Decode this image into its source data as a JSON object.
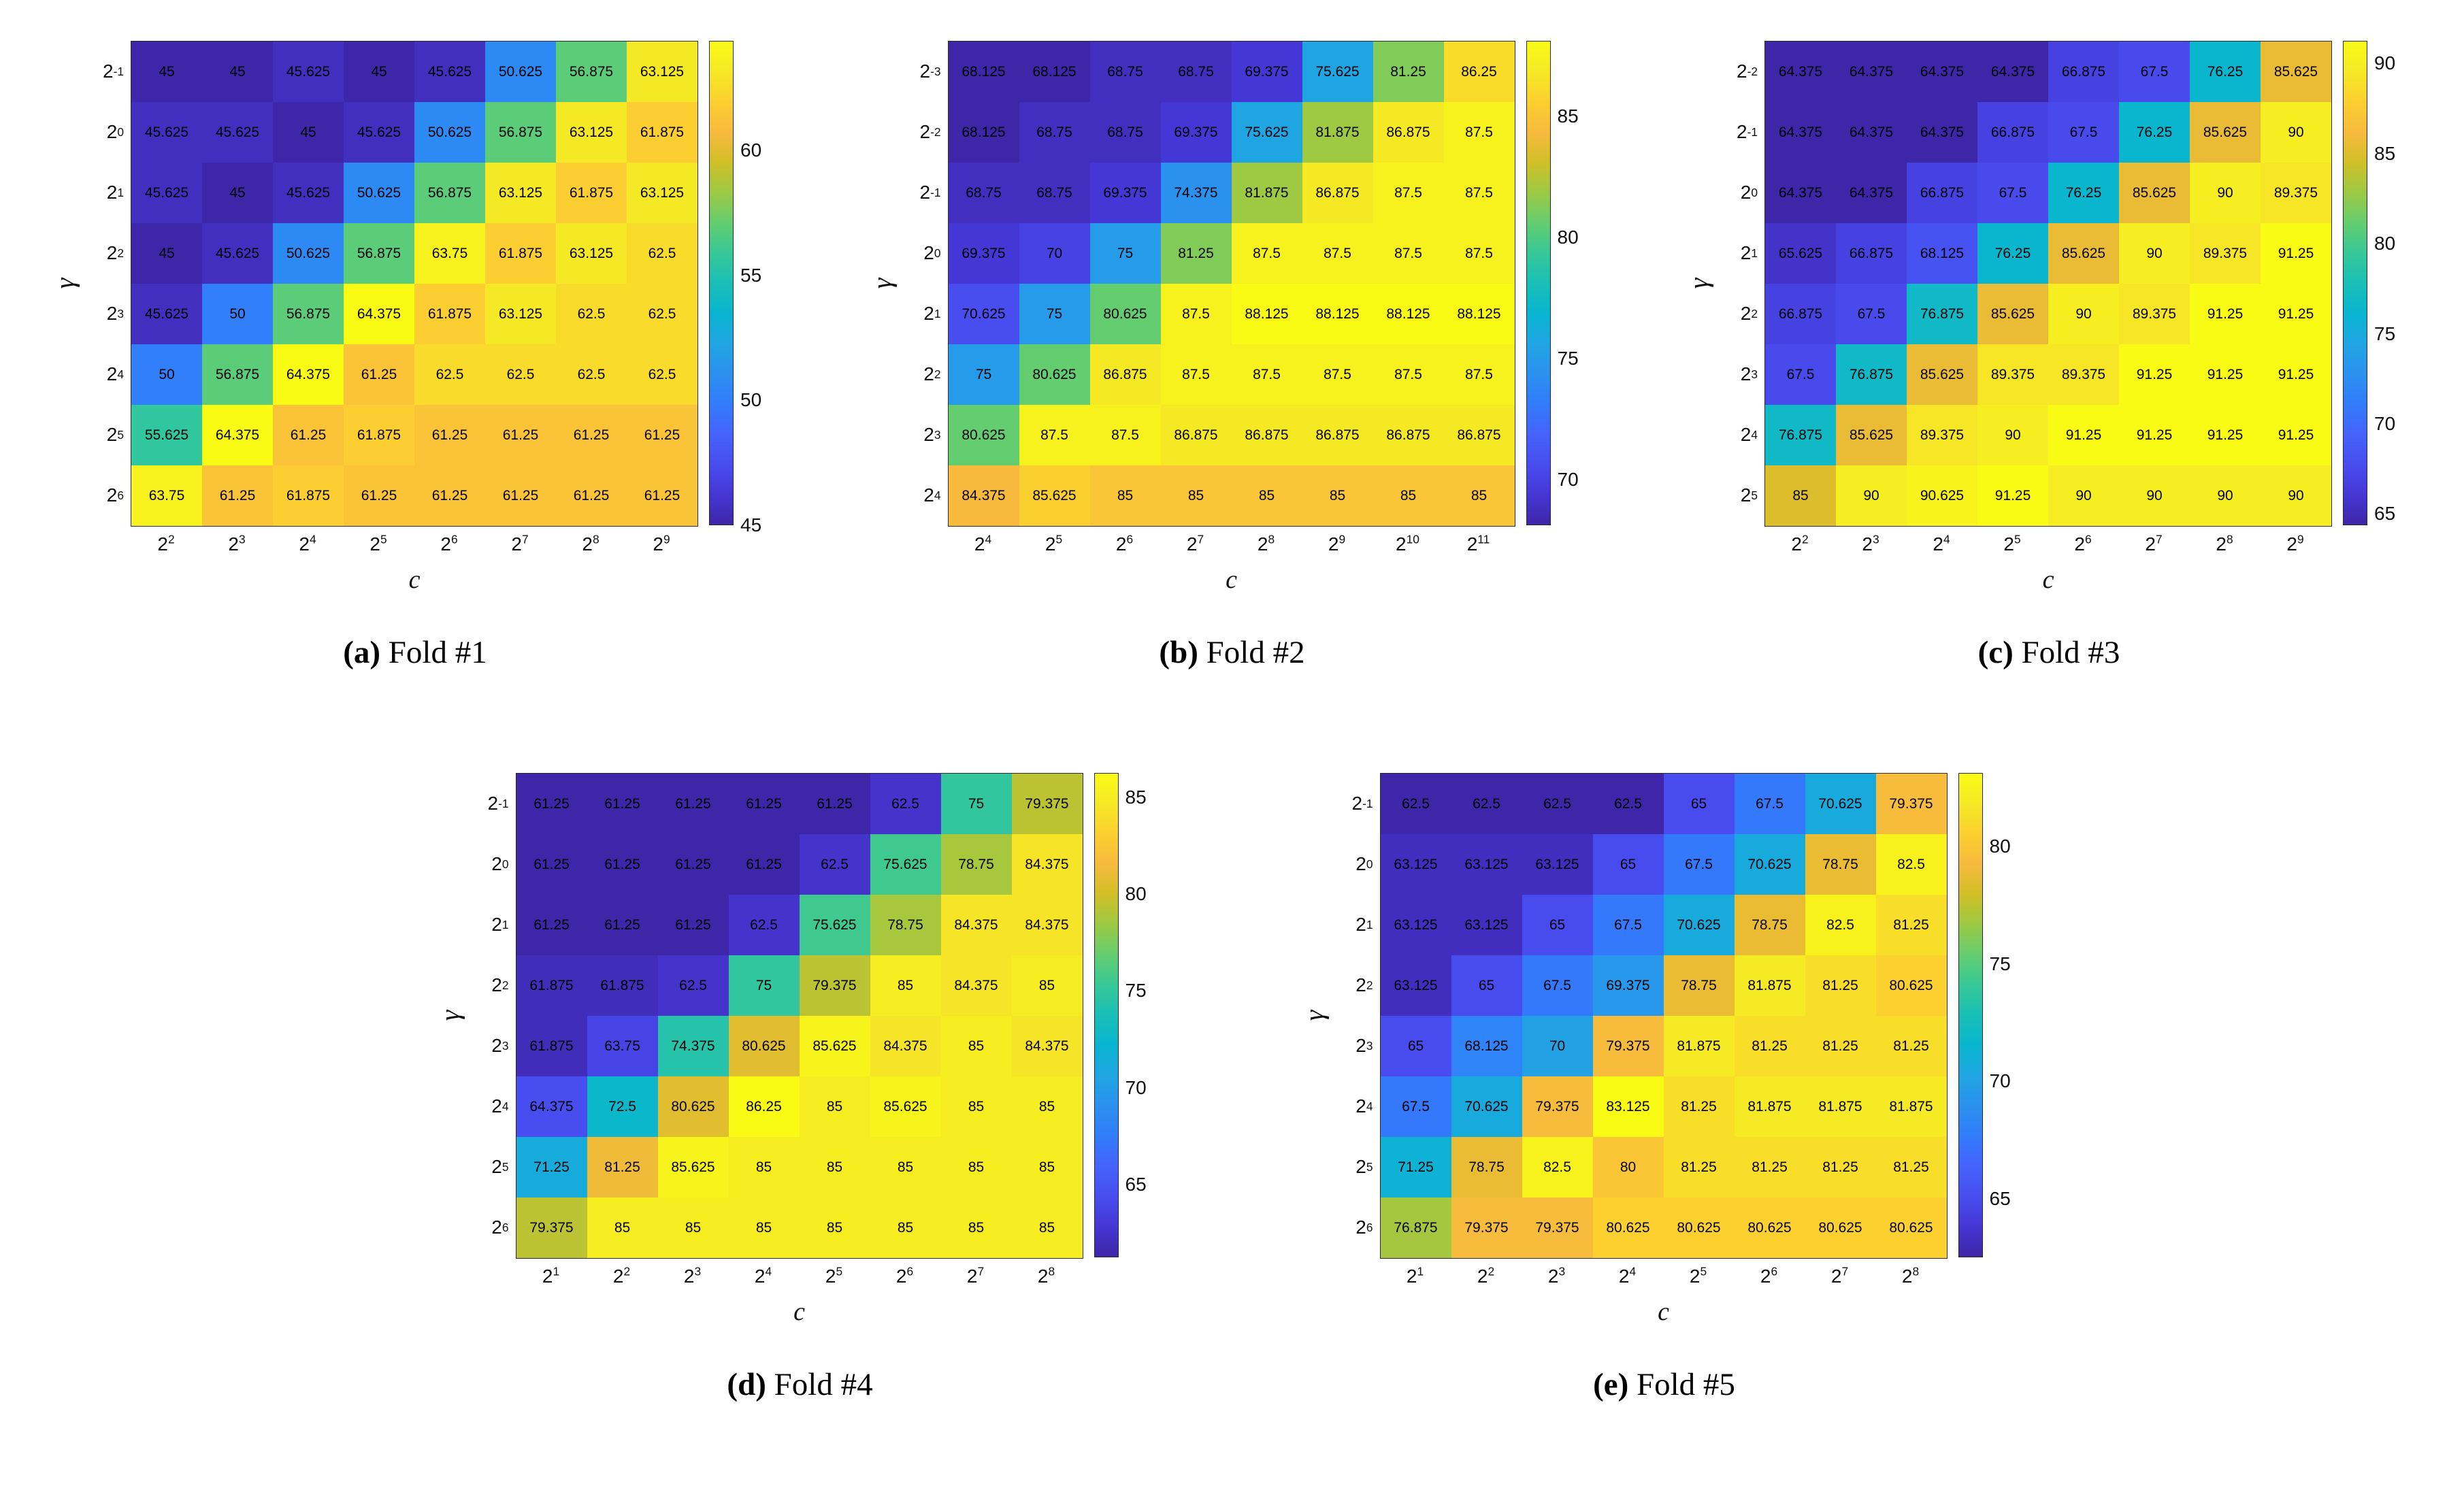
{
  "figure": {
    "background": "#ffffff",
    "text_color": "#000000"
  },
  "chart_data": [
    {
      "type": "heatmap",
      "colormap": "parula",
      "caption_prefix": "(a)",
      "caption_label": "Fold #1",
      "xlabel": "c",
      "ylabel": "γ",
      "tick_base": "2",
      "x_exponents": [
        "2",
        "3",
        "4",
        "5",
        "6",
        "7",
        "8",
        "9"
      ],
      "y_exponents": [
        "-1",
        "0",
        "1",
        "2",
        "3",
        "4",
        "5",
        "6"
      ],
      "clim": [
        45,
        64.375
      ],
      "colorbar_ticks": [
        45,
        50,
        55,
        60
      ],
      "rows": [
        [
          45,
          45,
          45.625,
          45,
          45.625,
          50.625,
          56.875,
          63.125
        ],
        [
          45.625,
          45.625,
          45,
          45.625,
          50.625,
          56.875,
          63.125,
          61.875
        ],
        [
          45.625,
          45,
          45.625,
          50.625,
          56.875,
          63.125,
          61.875,
          63.125
        ],
        [
          45,
          45.625,
          50.625,
          56.875,
          63.75,
          61.875,
          63.125,
          62.5
        ],
        [
          45.625,
          50,
          56.875,
          64.375,
          61.875,
          63.125,
          62.5,
          62.5
        ],
        [
          50,
          56.875,
          64.375,
          61.25,
          62.5,
          62.5,
          62.5,
          62.5
        ],
        [
          55.625,
          64.375,
          61.25,
          61.875,
          61.25,
          61.25,
          61.25,
          61.25
        ],
        [
          63.75,
          61.25,
          61.875,
          61.25,
          61.25,
          61.25,
          61.25,
          61.25
        ]
      ]
    },
    {
      "type": "heatmap",
      "colormap": "parula",
      "caption_prefix": "(b)",
      "caption_label": "Fold #2",
      "xlabel": "c",
      "ylabel": "γ",
      "tick_base": "2",
      "x_exponents": [
        "4",
        "5",
        "6",
        "7",
        "8",
        "9",
        "10",
        "11"
      ],
      "y_exponents": [
        "-3",
        "-2",
        "-1",
        "0",
        "1",
        "2",
        "3",
        "4"
      ],
      "clim": [
        68.125,
        88.125
      ],
      "colorbar_ticks": [
        70,
        75,
        80,
        85
      ],
      "rows": [
        [
          68.125,
          68.125,
          68.75,
          68.75,
          69.375,
          75.625,
          81.25,
          86.25
        ],
        [
          68.125,
          68.75,
          68.75,
          69.375,
          75.625,
          81.875,
          86.875,
          87.5
        ],
        [
          68.75,
          68.75,
          69.375,
          74.375,
          81.875,
          86.875,
          87.5,
          87.5
        ],
        [
          69.375,
          70,
          75,
          81.25,
          87.5,
          87.5,
          87.5,
          87.5
        ],
        [
          70.625,
          75,
          80.625,
          87.5,
          88.125,
          88.125,
          88.125,
          88.125
        ],
        [
          75,
          80.625,
          86.875,
          87.5,
          87.5,
          87.5,
          87.5,
          87.5
        ],
        [
          80.625,
          87.5,
          87.5,
          86.875,
          86.875,
          86.875,
          86.875,
          86.875
        ],
        [
          84.375,
          85.625,
          85,
          85,
          85,
          85,
          85,
          85
        ]
      ]
    },
    {
      "type": "heatmap",
      "colormap": "parula",
      "caption_prefix": "(c)",
      "caption_label": "Fold #3",
      "xlabel": "c",
      "ylabel": "γ",
      "tick_base": "2",
      "x_exponents": [
        "2",
        "3",
        "4",
        "5",
        "6",
        "7",
        "8",
        "9"
      ],
      "y_exponents": [
        "-2",
        "-1",
        "0",
        "1",
        "2",
        "3",
        "4",
        "5"
      ],
      "clim": [
        64.375,
        91.25
      ],
      "colorbar_ticks": [
        65,
        70,
        75,
        80,
        85,
        90
      ],
      "rows": [
        [
          64.375,
          64.375,
          64.375,
          64.375,
          66.875,
          67.5,
          76.25,
          85.625
        ],
        [
          64.375,
          64.375,
          64.375,
          66.875,
          67.5,
          76.25,
          85.625,
          90
        ],
        [
          64.375,
          64.375,
          66.875,
          67.5,
          76.25,
          85.625,
          90,
          89.375
        ],
        [
          65.625,
          66.875,
          68.125,
          76.25,
          85.625,
          90,
          89.375,
          91.25
        ],
        [
          66.875,
          67.5,
          76.875,
          85.625,
          90,
          89.375,
          91.25,
          91.25
        ],
        [
          67.5,
          76.875,
          85.625,
          89.375,
          89.375,
          91.25,
          91.25,
          91.25
        ],
        [
          76.875,
          85.625,
          89.375,
          90,
          91.25,
          91.25,
          91.25,
          91.25
        ],
        [
          85,
          90,
          90.625,
          91.25,
          90,
          90,
          90,
          90
        ]
      ]
    },
    {
      "type": "heatmap",
      "colormap": "parula",
      "caption_prefix": "(d)",
      "caption_label": "Fold #4",
      "xlabel": "c",
      "ylabel": "γ",
      "tick_base": "2",
      "x_exponents": [
        "1",
        "2",
        "3",
        "4",
        "5",
        "6",
        "7",
        "8"
      ],
      "y_exponents": [
        "-1",
        "0",
        "1",
        "2",
        "3",
        "4",
        "5",
        "6"
      ],
      "clim": [
        61.25,
        86.25
      ],
      "colorbar_ticks": [
        65,
        70,
        75,
        80,
        85
      ],
      "rows": [
        [
          61.25,
          61.25,
          61.25,
          61.25,
          61.25,
          62.5,
          75,
          79.375
        ],
        [
          61.25,
          61.25,
          61.25,
          61.25,
          62.5,
          75.625,
          78.75,
          84.375
        ],
        [
          61.25,
          61.25,
          61.25,
          62.5,
          75.625,
          78.75,
          84.375,
          84.375
        ],
        [
          61.875,
          61.875,
          62.5,
          75,
          79.375,
          85,
          84.375,
          85
        ],
        [
          61.875,
          63.75,
          74.375,
          80.625,
          85.625,
          84.375,
          85,
          84.375
        ],
        [
          64.375,
          72.5,
          80.625,
          86.25,
          85,
          85.625,
          85,
          85
        ],
        [
          71.25,
          81.25,
          85.625,
          85,
          85,
          85,
          85,
          85
        ],
        [
          79.375,
          85,
          85,
          85,
          85,
          85,
          85,
          85
        ]
      ]
    },
    {
      "type": "heatmap",
      "colormap": "parula",
      "caption_prefix": "(e)",
      "caption_label": "Fold #5",
      "xlabel": "c",
      "ylabel": "γ",
      "tick_base": "2",
      "x_exponents": [
        "1",
        "2",
        "3",
        "4",
        "5",
        "6",
        "7",
        "8"
      ],
      "y_exponents": [
        "-1",
        "0",
        "1",
        "2",
        "3",
        "4",
        "5",
        "6"
      ],
      "clim": [
        62.5,
        83.125
      ],
      "colorbar_ticks": [
        65,
        70,
        75,
        80
      ],
      "rows": [
        [
          62.5,
          62.5,
          62.5,
          62.5,
          65,
          67.5,
          70.625,
          79.375
        ],
        [
          63.125,
          63.125,
          63.125,
          65,
          67.5,
          70.625,
          78.75,
          82.5
        ],
        [
          63.125,
          63.125,
          65,
          67.5,
          70.625,
          78.75,
          82.5,
          81.25
        ],
        [
          63.125,
          65,
          67.5,
          69.375,
          78.75,
          81.875,
          81.25,
          80.625
        ],
        [
          65,
          68.125,
          70,
          79.375,
          81.875,
          81.25,
          81.25,
          81.25
        ],
        [
          67.5,
          70.625,
          79.375,
          83.125,
          81.25,
          81.875,
          81.875,
          81.875
        ],
        [
          71.25,
          78.75,
          82.5,
          80,
          81.25,
          81.25,
          81.25,
          81.25
        ],
        [
          76.875,
          79.375,
          79.375,
          80.625,
          80.625,
          80.625,
          80.625,
          80.625
        ]
      ]
    }
  ]
}
